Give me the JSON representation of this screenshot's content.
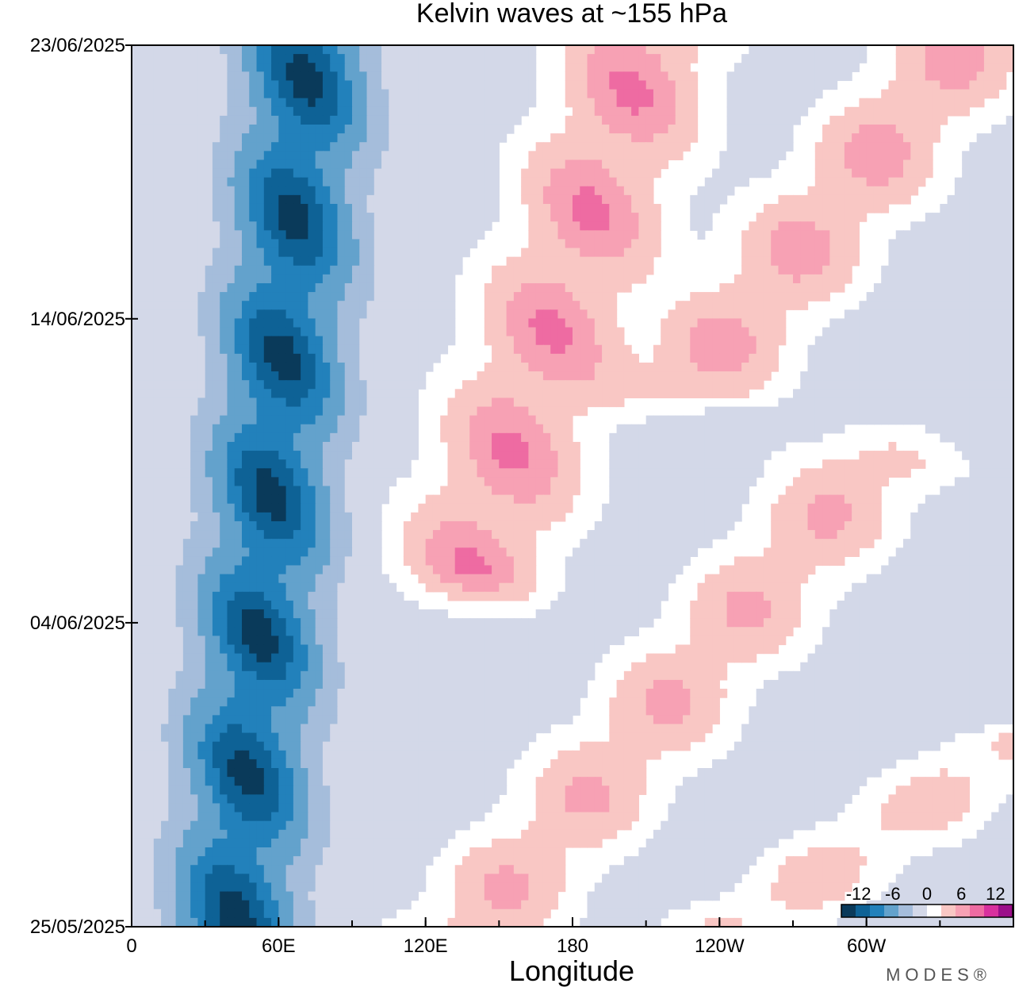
{
  "chart_data": {
    "type": "heatmap",
    "title": "Kelvin waves at ~155 hPa",
    "xlabel": "Longitude",
    "ylabel": "",
    "x_ticks": [
      {
        "lon": 0,
        "label": "0"
      },
      {
        "lon": 60,
        "label": "60E"
      },
      {
        "lon": 120,
        "label": "120E"
      },
      {
        "lon": 180,
        "label": "180"
      },
      {
        "lon": 240,
        "label": "120W"
      },
      {
        "lon": 300,
        "label": "60W"
      }
    ],
    "xlim": [
      0,
      360
    ],
    "y_ticks": [
      {
        "day": 0,
        "label": "25/05/2025"
      },
      {
        "day": 10,
        "label": "04/06/2025"
      },
      {
        "day": 20,
        "label": "14/06/2025"
      },
      {
        "day": 29,
        "label": "23/06/2025"
      }
    ],
    "ylim_dates": [
      "25/05/2025",
      "23/06/2025"
    ],
    "colorbar": {
      "levels": [
        -15,
        -12,
        -9,
        -6,
        -3,
        -1,
        1,
        3,
        6,
        9,
        12,
        15
      ],
      "colors": [
        "#0a3a5a",
        "#0e6296",
        "#2281bb",
        "#63a2cc",
        "#a5bddb",
        "#d3d8e8",
        "#ffffff",
        "#f9c7c4",
        "#f7a1b4",
        "#ee6ba2",
        "#d8309e",
        "#9b0f8a"
      ],
      "tick_labels": [
        "-12",
        "-6",
        "0",
        "6",
        "12"
      ],
      "tick_values": [
        -12,
        -6,
        0,
        6,
        12
      ]
    },
    "features": [
      {
        "kind": "negative-band",
        "lon_start": 42,
        "lon_end": 72,
        "day_start": 0,
        "day_end": 29,
        "peak": -13.5
      },
      {
        "kind": "positive-band",
        "lon_start": 140,
        "lon_end": 210,
        "day_start": 12,
        "day_end": 29,
        "peak": 10
      },
      {
        "kind": "positive-band",
        "lon_start": 140,
        "lon_end": 300,
        "day_start": 0,
        "day_end": 15,
        "peak": 7
      },
      {
        "kind": "positive-band",
        "lon_start": 230,
        "lon_end": 340,
        "day_start": 18,
        "day_end": 29,
        "peak": 8
      },
      {
        "kind": "positive-band",
        "lon_start": 250,
        "lon_end": 360,
        "day_start": 0,
        "day_end": 6,
        "peak": 5
      }
    ],
    "grid": false,
    "legend": "bottom-right"
  },
  "brand": "MODES®"
}
